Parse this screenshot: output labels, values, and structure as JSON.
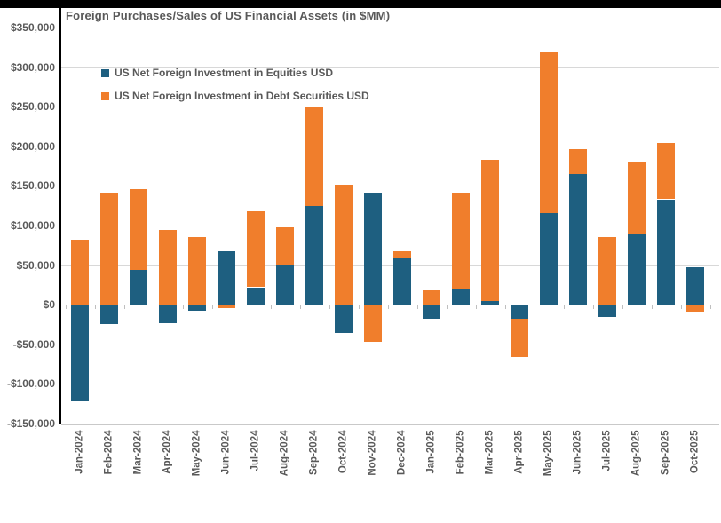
{
  "header": {
    "title": "Foreign Purchases/Sales of US Financial Assets (in $MM)"
  },
  "legend": [
    {
      "label": "US Net Foreign Investment in Equities USD",
      "color": "#1E5F80"
    },
    {
      "label": "US Net Foreign Investment in Debt Securities USD",
      "color": "#F07E2C"
    }
  ],
  "colors": {
    "equities": "#1E5F80",
    "debt": "#F07E2C",
    "gridline": "#D8D8D8",
    "axis_text": "#595959",
    "top_border": "#000000"
  },
  "chart_data": {
    "type": "bar",
    "stacked": true,
    "title": "Foreign Purchases/Sales of US Financial Assets (in $MM)",
    "xlabel": "",
    "ylabel": "",
    "ylim": [
      -150000,
      350000
    ],
    "y_tick_step": 50000,
    "grid": true,
    "legend_position": "top-left-inside",
    "y_tick_labels": [
      "$350,000",
      "$300,000",
      "$250,000",
      "$200,000",
      "$150,000",
      "$100,000",
      "$50,000",
      "$0",
      "-$50,000",
      "-$100,000",
      "-$150,000"
    ],
    "categories": [
      "Jan-2024",
      "Feb-2024",
      "Mar-2024",
      "Apr-2024",
      "May-2024",
      "Jun-2024",
      "Jul-2024",
      "Aug-2024",
      "Sep-2024",
      "Oct-2024",
      "Nov-2024",
      "Dec-2024",
      "Jan-2025",
      "Feb-2025",
      "Mar-2025",
      "Apr-2025",
      "May-2025",
      "Jun-2025",
      "Jul-2025",
      "Aug-2025",
      "Sep-2025",
      "Oct-2025"
    ],
    "series": [
      {
        "name": "US Net Foreign Investment in Equities USD",
        "color": "#1E5F80",
        "values": [
          -122000,
          -25000,
          44000,
          -23000,
          -8000,
          67000,
          22000,
          51000,
          125000,
          -36000,
          142000,
          60000,
          -18000,
          19000,
          5000,
          -18000,
          116000,
          165000,
          -16000,
          89000,
          133000,
          47000
        ]
      },
      {
        "name": "US Net Foreign Investment in Debt Securities USD",
        "color": "#F07E2C",
        "values": [
          82000,
          141000,
          102000,
          94000,
          86000,
          -4000,
          96000,
          47000,
          124000,
          152000,
          -47000,
          8000,
          18000,
          122000,
          178000,
          -48000,
          203000,
          31000,
          86000,
          92000,
          71000,
          -9000
        ]
      }
    ]
  }
}
